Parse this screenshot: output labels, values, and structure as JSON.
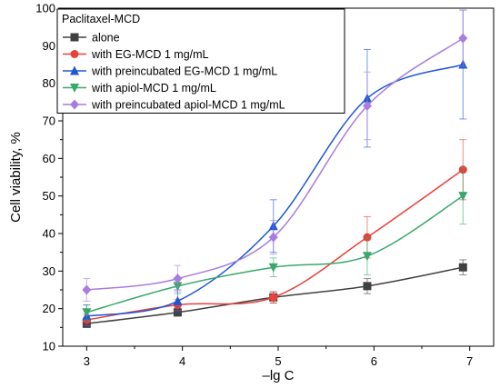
{
  "chart_data": {
    "type": "line",
    "xlabel": "–lg C",
    "ylabel": "Cell viability, %",
    "xlim": [
      2.75,
      7.25
    ],
    "ylim": [
      10,
      100
    ],
    "xticks": [
      3,
      4,
      5,
      6,
      7
    ],
    "yticks": [
      10,
      20,
      30,
      40,
      50,
      60,
      70,
      80,
      90,
      100
    ],
    "grid": false,
    "legend_title": "Paclitaxel-MCD",
    "legend_position": "top-left",
    "series": [
      {
        "name": "alone",
        "color": "#404040",
        "marker": "square",
        "x": [
          3,
          3.95,
          4.95,
          5.93,
          6.93
        ],
        "y": [
          16,
          19,
          23,
          26,
          31
        ],
        "err": [
          1,
          1,
          1.5,
          2,
          2
        ]
      },
      {
        "name": "with EG-MCD 1 mg/mL",
        "color": "#e8413a",
        "marker": "circle",
        "x": [
          3,
          3.95,
          4.95,
          5.93,
          6.93
        ],
        "y": [
          17,
          21,
          23,
          39,
          57
        ],
        "err": [
          1.5,
          1.5,
          1.5,
          5.5,
          8
        ]
      },
      {
        "name": "with preincubated EG-MCD 1 mg/mL",
        "color": "#1f56d4",
        "marker": "triangle-up",
        "x": [
          3,
          3.95,
          4.95,
          5.93,
          6.93
        ],
        "y": [
          18,
          22,
          42,
          76,
          85
        ],
        "err": [
          3,
          3,
          7,
          13,
          14.5
        ]
      },
      {
        "name": "with apiol-MCD 1 mg/mL",
        "color": "#3aa86b",
        "marker": "triangle-down",
        "x": [
          3,
          3.95,
          4.95,
          5.93,
          6.93
        ],
        "y": [
          19,
          26,
          31,
          34,
          50
        ],
        "err": [
          2,
          2,
          2.5,
          5,
          7.5
        ]
      },
      {
        "name": "with preincubated apiol-MCD 1 mg/mL",
        "color": "#a77de0",
        "marker": "diamond",
        "x": [
          3,
          3.95,
          4.95,
          5.93,
          6.93
        ],
        "y": [
          25,
          28,
          39,
          74,
          92
        ],
        "err": [
          3,
          3.5,
          4.5,
          9,
          7.5
        ]
      }
    ]
  }
}
